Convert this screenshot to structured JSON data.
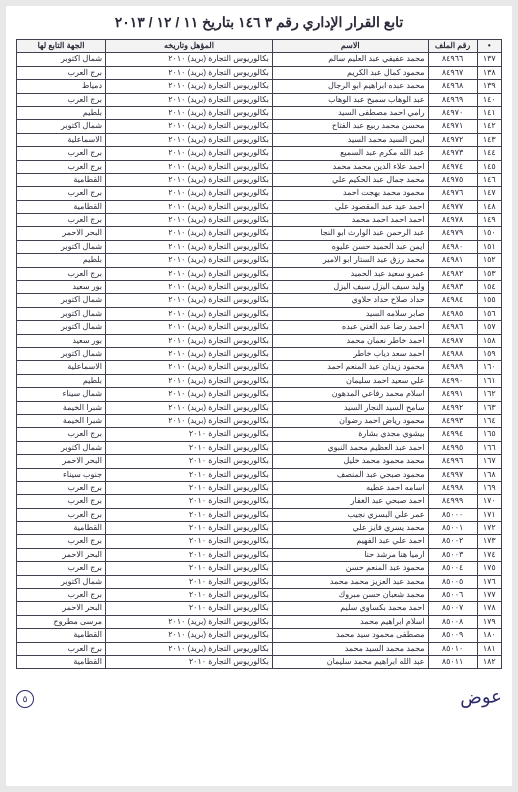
{
  "title": "تابع القرار الإداري رقم ٣ ١٤٦ بتاريخ ١١ / ١٢ / ٢٠١٣",
  "table": {
    "headers": {
      "idx": "•",
      "file": "رقم الملف",
      "name": "الاسم",
      "qual": "المؤهل وتاريخه",
      "dept": "الجهة التابع لها"
    },
    "rows": [
      {
        "idx": "١٣٧",
        "file": "٨٤٩٦٦",
        "name": "محمد عفيفي عبد العليم سالم",
        "qual": "بكالوريوس التجارة (بريد) ٢٠١٠",
        "dept": "شمال اكتوبر"
      },
      {
        "idx": "١٣٨",
        "file": "٨٤٩٦٧",
        "name": "محمود كمال عبد الكريم",
        "qual": "بكالوريوس التجارة (بريد) ٢٠١٠",
        "dept": "برج العرب"
      },
      {
        "idx": "١٣٩",
        "file": "٨٤٩٦٨",
        "name": "محمد عبده ابراهيم ابو الرجال",
        "qual": "بكالوريوس التجارة (بريد) ٢٠١٠",
        "dept": "دمياط"
      },
      {
        "idx": "١٤٠",
        "file": "٨٤٩٦٩",
        "name": "عبد الوهاب سميح عبد الوهاب",
        "qual": "بكالوريوس التجارة (بريد) ٢٠١٠",
        "dept": "برج العرب"
      },
      {
        "idx": "١٤١",
        "file": "٨٤٩٧٠",
        "name": "رامي احمد مصطفى السيد",
        "qual": "بكالوريوس التجارة (بريد) ٢٠١٠",
        "dept": "بلطيم"
      },
      {
        "idx": "١٤٢",
        "file": "٨٤٩٧١",
        "name": "محسن محمد ربيع عبد الفتاح",
        "qual": "بكالوريوس التجارة (بريد) ٢٠١٠",
        "dept": "شمال اكتوبر"
      },
      {
        "idx": "١٤٣",
        "file": "٨٤٩٧٢",
        "name": "ايمن السيد محمد السيد",
        "qual": "بكالوريوس التجارة (بريد) ٢٠١٠",
        "dept": "الاسماعلية"
      },
      {
        "idx": "١٤٤",
        "file": "٨٤٩٧٣",
        "name": "عبد الله مكرم عبد السميع",
        "qual": "بكالوريوس التجارة (بريد) ٢٠١٠",
        "dept": "برج العرب"
      },
      {
        "idx": "١٤٥",
        "file": "٨٤٩٧٤",
        "name": "احمد علاء الدين محمد محمد",
        "qual": "بكالوريوس التجارة (بريد) ٢٠١٠",
        "dept": "برج العرب"
      },
      {
        "idx": "١٤٦",
        "file": "٨٤٩٧٥",
        "name": "محمد جمال عبد الحكيم علي",
        "qual": "بكالوريوس التجارة (بريد) ٢٠١٠",
        "dept": "القطامية"
      },
      {
        "idx": "١٤٧",
        "file": "٨٤٩٧٦",
        "name": "محمود محمد بهجت احمد",
        "qual": "بكالوريوس التجارة (بريد) ٢٠١٠",
        "dept": "برج العرب"
      },
      {
        "idx": "١٤٨",
        "file": "٨٤٩٧٧",
        "name": "احمد عيد عبد المقصود علي",
        "qual": "بكالوريوس التجارة (بريد) ٢٠١٠",
        "dept": "القطامية"
      },
      {
        "idx": "١٤٩",
        "file": "٨٤٩٧٨",
        "name": "احمد احمد احمد محمد",
        "qual": "بكالوريوس التجارة (بريد) ٢٠١٠",
        "dept": "برج العرب"
      },
      {
        "idx": "١٥٠",
        "file": "٨٤٩٧٩",
        "name": "عبد الرحمن عبد الوارث ابو النجا",
        "qual": "بكالوريوس التجارة (بريد) ٢٠١٠",
        "dept": "البحر الاحمر"
      },
      {
        "idx": "١٥١",
        "file": "٨٤٩٨٠",
        "name": "ايمن عبد الحميد حسن عليوه",
        "qual": "بكالوريوس التجارة (بريد) ٢٠١٠",
        "dept": "شمال اكتوبر"
      },
      {
        "idx": "١٥٢",
        "file": "٨٤٩٨١",
        "name": "محمد رزق عبد الستار ابو الامير",
        "qual": "بكالوريوس التجارة (بريد) ٢٠١٠",
        "dept": "بلطيم"
      },
      {
        "idx": "١٥٣",
        "file": "٨٤٩٨٢",
        "name": "عمرو سعيد عبد الحميد",
        "qual": "بكالوريوس التجارة (بريد) ٢٠١٠",
        "dept": "برج العرب"
      },
      {
        "idx": "١٥٤",
        "file": "٨٤٩٨٣",
        "name": "وليد سيف اليزل سيف اليزل",
        "qual": "بكالوريوس التجارة (بريد) ٢٠١٠",
        "dept": "بور سعيد"
      },
      {
        "idx": "١٥٥",
        "file": "٨٤٩٨٤",
        "name": "حداد صلاح حداد حلاوي",
        "qual": "بكالوريوس التجارة (بريد) ٢٠١٠",
        "dept": "شمال اكتوبر"
      },
      {
        "idx": "١٥٦",
        "file": "٨٤٩٨٥",
        "name": "صابر سلامه السيد",
        "qual": "بكالوريوس التجارة (بريد) ٢٠١٠",
        "dept": "شمال اكتوبر"
      },
      {
        "idx": "١٥٧",
        "file": "٨٤٩٨٦",
        "name": "احمد رضا عبد الغني عبده",
        "qual": "بكالوريوس التجارة (بريد) ٢٠١٠",
        "dept": "شمال اكتوبر"
      },
      {
        "idx": "١٥٨",
        "file": "٨٤٩٨٧",
        "name": "احمد خاطر نعمان محمد",
        "qual": "بكالوريوس التجارة (بريد) ٢٠١٠",
        "dept": "بور سعيد"
      },
      {
        "idx": "١٥٩",
        "file": "٨٤٩٨٨",
        "name": "احمد سعد دياب خاطر",
        "qual": "بكالوريوس التجارة (بريد) ٢٠١٠",
        "dept": "شمال اكتوبر"
      },
      {
        "idx": "١٦٠",
        "file": "٨٤٩٨٩",
        "name": "محمود زيدان عبد المنعم احمد",
        "qual": "بكالوريوس التجارة (بريد) ٢٠١٠",
        "dept": "الاسماعلية"
      },
      {
        "idx": "١٦١",
        "file": "٨٤٩٩٠",
        "name": "علي سعيد احمد سليمان",
        "qual": "بكالوريوس التجارة (بريد) ٢٠١٠",
        "dept": "بلطيم"
      },
      {
        "idx": "١٦٢",
        "file": "٨٤٩٩١",
        "name": "اسلام محمد رفاعي المدهون",
        "qual": "بكالوريوس التجارة (بريد) ٢٠١٠",
        "dept": "شمال سيناء"
      },
      {
        "idx": "١٦٣",
        "file": "٨٤٩٩٢",
        "name": "سامح السيد النجار السيد",
        "qual": "بكالوريوس التجارة (بريد) ٢٠١٠",
        "dept": "شبرا الخيمة"
      },
      {
        "idx": "١٦٤",
        "file": "٨٤٩٩٣",
        "name": "محمود رياض احمد رضوان",
        "qual": "بكالوريوس التجارة (بريد) ٢٠١٠",
        "dept": "شبرا الخيمة"
      },
      {
        "idx": "١٦٥",
        "file": "٨٤٩٩٤",
        "name": "بيشوي مجدي بشارة",
        "qual": "بكالوريوس التجارة ٢٠١٠",
        "dept": "برج العرب"
      },
      {
        "idx": "١٦٦",
        "file": "٨٤٩٩٥",
        "name": "احمد عبد العظيم محمد النبوي",
        "qual": "بكالوريوس التجارة ٢٠١٠",
        "dept": "شمال اكتوبر"
      },
      {
        "idx": "١٦٧",
        "file": "٨٤٩٩٦",
        "name": "محمد محمود محمد خليل",
        "qual": "بكالوريوس التجارة ٢٠١٠",
        "dept": "البحر الاحمر"
      },
      {
        "idx": "١٦٨",
        "file": "٨٤٩٩٧",
        "name": "محمود صبحي عبد المنصف",
        "qual": "بكالوريوس التجارة ٢٠١٠",
        "dept": "جنوب سيناء"
      },
      {
        "idx": "١٦٩",
        "file": "٨٤٩٩٨",
        "name": "اسامه احمد عطيه",
        "qual": "بكالوريوس التجارة ٢٠١٠",
        "dept": "برج العرب"
      },
      {
        "idx": "١٧٠",
        "file": "٨٤٩٩٩",
        "name": "احمد صبحي عبد الغفار",
        "qual": "بكالوريوس التجارة ٢٠١٠",
        "dept": "برج العرب"
      },
      {
        "idx": "١٧١",
        "file": "٨٥٠٠٠",
        "name": "عمر علي البسري نجيب",
        "qual": "بكالوريوس التجارة ٢٠١٠",
        "dept": "برج العرب"
      },
      {
        "idx": "١٧٢",
        "file": "٨٥٠٠١",
        "name": "محمد يسري فايز علي",
        "qual": "بكالوريوس التجارة ٢٠١٠",
        "dept": "القطامية"
      },
      {
        "idx": "١٧٣",
        "file": "٨٥٠٠٢",
        "name": "احمد علي عبد الفهيم",
        "qual": "بكالوريوس التجارة ٢٠١٠",
        "dept": "برج العرب"
      },
      {
        "idx": "١٧٤",
        "file": "٨٥٠٠٣",
        "name": "ارميا هنا مرشد حنا",
        "qual": "بكالوريوس التجارة ٢٠١٠",
        "dept": "البحر الاحمر"
      },
      {
        "idx": "١٧٥",
        "file": "٨٥٠٠٤",
        "name": "محمود عبد المنعم حسن",
        "qual": "بكالوريوس التجارة ٢٠١٠",
        "dept": "برج العرب"
      },
      {
        "idx": "١٧٦",
        "file": "٨٥٠٠٥",
        "name": "محمد عبد العزيز محمد محمد",
        "qual": "بكالوريوس التجارة ٢٠١٠",
        "dept": "شمال اكتوبر"
      },
      {
        "idx": "١٧٧",
        "file": "٨٥٠٠٦",
        "name": "محمد شعبان حسن مبروك",
        "qual": "بكالوريوس التجارة ٢٠١٠",
        "dept": "برج العرب"
      },
      {
        "idx": "١٧٨",
        "file": "٨٥٠٠٧",
        "name": "احمد محمد بكساوي سليم",
        "qual": "بكالوريوس التجارة ٢٠١٠",
        "dept": "البحر الاحمر"
      },
      {
        "idx": "١٧٩",
        "file": "٨٥٠٠٨",
        "name": "اسلام ابراهيم محمد",
        "qual": "بكالوريوس التجارة (بريد) ٢٠١٠",
        "dept": "مرسى مطروح"
      },
      {
        "idx": "١٨٠",
        "file": "٨٥٠٠٩",
        "name": "مصطفى محمود سيد محمد",
        "qual": "بكالوريوس التجارة (بريد) ٢٠١٠",
        "dept": "القطامية"
      },
      {
        "idx": "١٨١",
        "file": "٨٥٠١٠",
        "name": "محمد محمد السيد محمد",
        "qual": "بكالوريوس التجارة (بريد) ٢٠١٠",
        "dept": "برج العرب"
      },
      {
        "idx": "١٨٢",
        "file": "٨٥٠١١",
        "name": "عبد الله ابراهيم محمد سليمان",
        "qual": "بكالوريوس التجارة ٢٠١٠",
        "dept": "القطامية"
      }
    ]
  },
  "signature": "عوض",
  "stamp": "٥"
}
